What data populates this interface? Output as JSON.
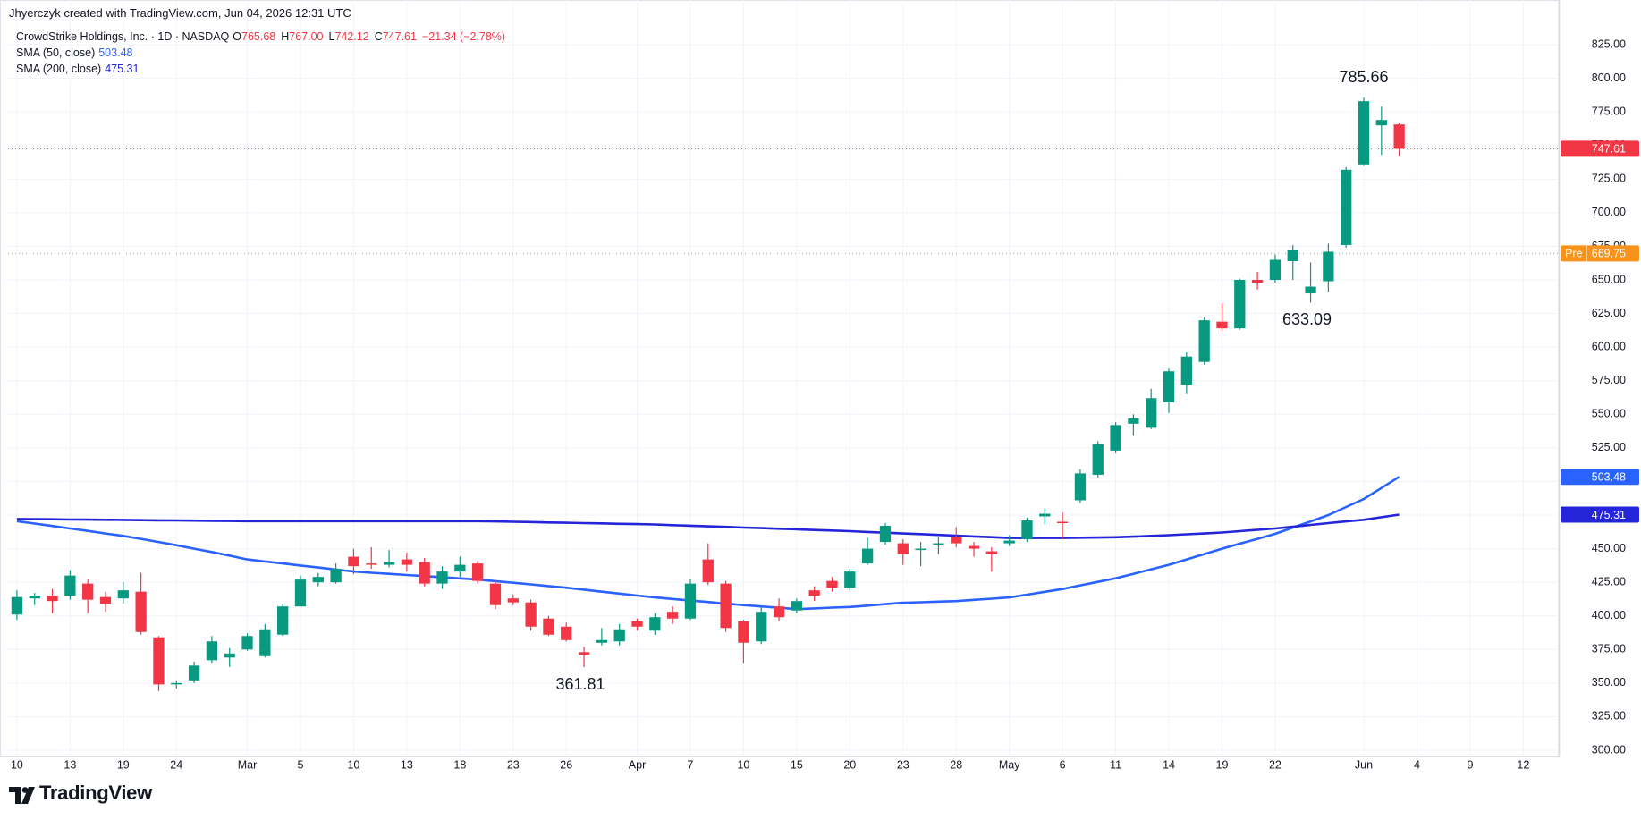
{
  "chart_data": {
    "type": "candlestick",
    "credit": "Jhyerczyk created with TradingView.com, Jun 04, 2026 12:31 UTC",
    "title": "CrowdStrike Holdings, Inc. · 1D · NASDAQ",
    "legend_ohlc": [
      {
        "label": "O",
        "value": "765.68"
      },
      {
        "label": "H",
        "value": "767.00"
      },
      {
        "label": "L",
        "value": "742.12"
      },
      {
        "label": "C",
        "value": "747.61"
      }
    ],
    "change": "−21.34 (−2.78%)",
    "brand": "TradingView",
    "up_color": "#089981",
    "down_color": "#f23645",
    "ohlc": {
      "open": [
        401,
        413,
        415,
        415,
        424,
        414,
        413,
        418,
        384,
        349,
        352,
        367,
        369,
        375,
        370,
        386,
        407,
        425,
        425,
        444,
        439,
        438,
        442,
        440,
        424,
        433,
        439,
        424,
        413,
        410,
        398,
        392,
        373,
        380,
        381,
        396,
        389,
        403,
        398,
        442,
        424,
        396,
        381,
        407,
        404,
        419,
        426,
        421,
        439,
        455,
        454,
        449,
        453,
        459,
        452,
        448,
        454,
        457,
        474,
        470,
        486,
        505,
        523,
        543,
        540,
        559,
        572,
        589,
        619,
        614,
        650,
        650,
        664,
        640,
        649,
        676,
        736,
        765,
        765.68
      ],
      "high": [
        419,
        417,
        420,
        434,
        427,
        418,
        425,
        432,
        385,
        352,
        366,
        385,
        376,
        387,
        394,
        409,
        430,
        432,
        439,
        450,
        451,
        449,
        447,
        443,
        437,
        444,
        441,
        426,
        416,
        412,
        400,
        395,
        377,
        391,
        394,
        398,
        402,
        407,
        427,
        454,
        426,
        397,
        407,
        413,
        413,
        422,
        429,
        435,
        458,
        469,
        457,
        455,
        459,
        466,
        455,
        451,
        460,
        473,
        480,
        477,
        509,
        530,
        544,
        550,
        569,
        584,
        596,
        622,
        633,
        651,
        656,
        669,
        676,
        663,
        677,
        734,
        785.66,
        779,
        767
      ],
      "low": [
        397,
        408,
        402,
        412,
        402,
        403,
        409,
        386,
        344,
        346,
        350,
        365,
        362,
        374,
        369,
        385,
        407,
        422,
        424,
        431,
        435,
        436,
        433,
        422,
        420,
        429,
        424,
        405,
        408,
        389,
        385,
        381,
        361.81,
        378,
        378,
        389,
        386,
        394,
        397,
        423,
        388,
        365,
        379,
        396,
        402,
        411,
        418,
        419,
        438,
        453,
        438,
        437,
        446,
        451,
        444,
        433,
        452,
        455,
        468,
        457,
        484,
        503,
        521,
        534,
        539,
        551,
        565,
        587,
        612,
        613,
        643,
        648,
        650,
        633.09,
        641,
        674,
        735,
        743,
        742.12
      ],
      "close": [
        414,
        415,
        411,
        430,
        412,
        409,
        419,
        388,
        349,
        350,
        363,
        381,
        372,
        385,
        390,
        407,
        427,
        429,
        435,
        437,
        438,
        440,
        438,
        424,
        433,
        438,
        426,
        408,
        410,
        392,
        386,
        382,
        371,
        382,
        390,
        392,
        399,
        398,
        424,
        425,
        391,
        380,
        403,
        399,
        411,
        415,
        421,
        433,
        450,
        467,
        446,
        450,
        454,
        454,
        450,
        446,
        456,
        471,
        476,
        469,
        506,
        528,
        542,
        547,
        562,
        582,
        593,
        620,
        614,
        650,
        648,
        665,
        672,
        645,
        671,
        732,
        783,
        769,
        747.61
      ]
    },
    "lines": [
      {
        "name": "SMA (50, close)",
        "color": "#2962ff",
        "values": [
          470.5,
          468.7,
          466.9,
          465.0,
          463.2,
          461.3,
          459.5,
          457.3,
          455.0,
          452.6,
          450.0,
          447.5,
          444.8,
          442.0,
          440.5,
          439.0,
          437.5,
          436.0,
          434.5,
          433.0,
          432.1,
          431.3,
          430.4,
          429.6,
          428.7,
          427.9,
          427.0,
          425.8,
          424.6,
          423.4,
          422.2,
          421.0,
          419.5,
          418.0,
          416.6,
          415.1,
          413.7,
          412.6,
          411.4,
          410.3,
          409.1,
          408.0,
          407.0,
          406.0,
          405.0,
          405.5,
          406.1,
          406.6,
          407.6,
          408.7,
          409.7,
          410.1,
          410.6,
          411.0,
          411.9,
          412.8,
          413.7,
          415.8,
          417.9,
          420.0,
          422.7,
          425.3,
          428.0,
          431.3,
          434.7,
          438.0,
          442.0,
          446.0,
          450.0,
          453.7,
          457.3,
          461.0,
          465.7,
          470.3,
          475.0,
          481.0,
          487.0,
          495.2,
          503.48
        ]
      },
      {
        "name": "SMA (200, close)",
        "color": "#2424d9",
        "values": [
          472.1,
          472.0,
          471.9,
          471.7,
          471.6,
          471.5,
          471.4,
          471.2,
          471.1,
          471.0,
          470.9,
          470.7,
          470.6,
          470.5,
          470.5,
          470.5,
          470.5,
          470.5,
          470.5,
          470.5,
          470.5,
          470.5,
          470.5,
          470.5,
          470.5,
          470.5,
          470.5,
          470.3,
          470.0,
          469.8,
          469.5,
          469.3,
          469.0,
          468.8,
          468.5,
          468.3,
          468.0,
          467.5,
          467.1,
          466.6,
          466.2,
          465.7,
          465.3,
          464.8,
          464.4,
          463.9,
          463.5,
          463.0,
          462.4,
          461.9,
          461.3,
          460.8,
          460.2,
          459.7,
          459.1,
          458.6,
          458.0,
          458.0,
          458.0,
          458.0,
          458.2,
          458.3,
          458.5,
          459.0,
          459.5,
          460.0,
          460.7,
          461.3,
          462.0,
          463.0,
          464.0,
          465.0,
          466.3,
          467.7,
          469.0,
          470.3,
          471.5,
          473.4,
          475.31
        ]
      }
    ],
    "extreme_labels": [
      361.81,
      633.09,
      785.66
    ],
    "premarket": {
      "label": "Pre",
      "value": 669.75,
      "color": "#f7931a"
    },
    "xlim": [
      -0.5,
      87
    ],
    "xticks": [
      {
        "value": 0,
        "label": "10"
      },
      {
        "value": 3,
        "label": "13"
      },
      {
        "value": 6,
        "label": "19"
      },
      {
        "value": 9,
        "label": "24"
      },
      {
        "value": 13,
        "label": "Mar"
      },
      {
        "value": 16,
        "label": "5"
      },
      {
        "value": 19,
        "label": "10"
      },
      {
        "value": 22,
        "label": "13"
      },
      {
        "value": 25,
        "label": "18"
      },
      {
        "value": 28,
        "label": "23"
      },
      {
        "value": 31,
        "label": "26"
      },
      {
        "value": 35,
        "label": "Apr"
      },
      {
        "value": 38,
        "label": "7"
      },
      {
        "value": 41,
        "label": "10"
      },
      {
        "value": 44,
        "label": "15"
      },
      {
        "value": 47,
        "label": "20"
      },
      {
        "value": 50,
        "label": "23"
      },
      {
        "value": 53,
        "label": "28"
      },
      {
        "value": 56,
        "label": "May"
      },
      {
        "value": 59,
        "label": "6"
      },
      {
        "value": 62,
        "label": "11"
      },
      {
        "value": 65,
        "label": "14"
      },
      {
        "value": 68,
        "label": "19"
      },
      {
        "value": 71,
        "label": "22"
      },
      {
        "value": 76,
        "label": "Jun"
      },
      {
        "value": 79,
        "label": "4"
      },
      {
        "value": 82,
        "label": "9"
      },
      {
        "value": 85,
        "label": "12"
      }
    ],
    "ylim": [
      296,
      841
    ],
    "yticks": [
      {
        "value": 300,
        "label": "300.00"
      },
      {
        "value": 325,
        "label": "325.00"
      },
      {
        "value": 350,
        "label": "350.00"
      },
      {
        "value": 375,
        "label": "375.00"
      },
      {
        "value": 400,
        "label": "400.00"
      },
      {
        "value": 425,
        "label": "425.00"
      },
      {
        "value": 450,
        "label": "450.00"
      },
      {
        "value": 475,
        "label": "475.00"
      },
      {
        "value": 500,
        "label": "500.00"
      },
      {
        "value": 525,
        "label": "525.00"
      },
      {
        "value": 550,
        "label": "550.00"
      },
      {
        "value": 575,
        "label": "575.00"
      },
      {
        "value": 600,
        "label": "600.00"
      },
      {
        "value": 625,
        "label": "625.00"
      },
      {
        "value": 650,
        "label": "650.00"
      },
      {
        "value": 675,
        "label": "675.00"
      },
      {
        "value": 700,
        "label": "700.00"
      },
      {
        "value": 725,
        "label": "725.00"
      },
      {
        "value": 750,
        "label": "750.00"
      },
      {
        "value": 775,
        "label": "775.00"
      },
      {
        "value": 800,
        "label": "800.00"
      },
      {
        "value": 825,
        "label": "825.00"
      }
    ],
    "grid": true
  }
}
